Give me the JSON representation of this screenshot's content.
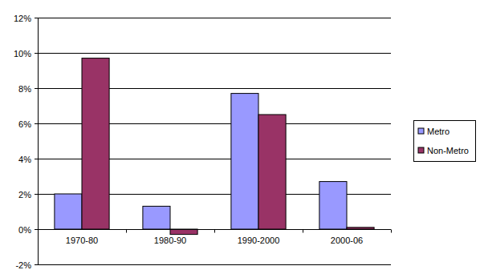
{
  "chart_data": {
    "type": "bar",
    "categories": [
      "1970-80",
      "1980-90",
      "1990-2000",
      "2000-06"
    ],
    "series": [
      {
        "name": "Metro",
        "color": "#9999ff",
        "values": [
          2.0,
          1.3,
          7.7,
          2.7
        ]
      },
      {
        "name": "Non-Metro",
        "color": "#993366",
        "values": [
          9.7,
          -0.3,
          6.5,
          0.1
        ]
      }
    ],
    "ylim": [
      -2,
      12
    ],
    "yticks": [
      {
        "value": -2,
        "label": "-2%"
      },
      {
        "value": 0,
        "label": "0%"
      },
      {
        "value": 2,
        "label": "2%"
      },
      {
        "value": 4,
        "label": "4%"
      },
      {
        "value": 6,
        "label": "6%"
      },
      {
        "value": 8,
        "label": "8%"
      },
      {
        "value": 10,
        "label": "10%"
      },
      {
        "value": 12,
        "label": "12%"
      }
    ],
    "grid": true,
    "legend": "right"
  }
}
